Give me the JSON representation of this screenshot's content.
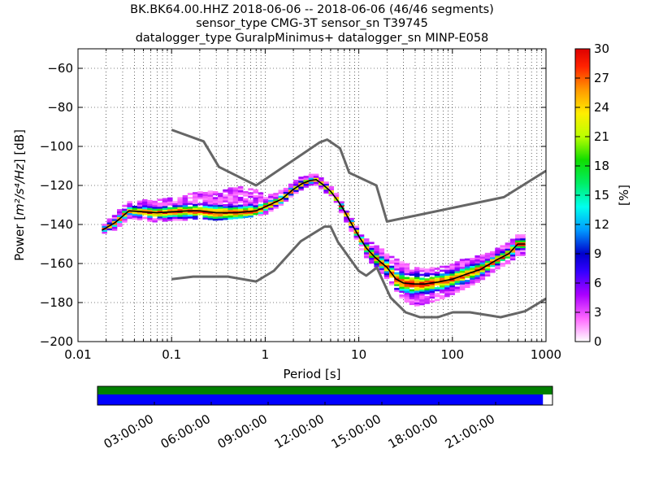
{
  "chart_data": {
    "type": "heatmap",
    "title_lines": [
      "BK.BK64.00.HHZ   2018-06-06 -- 2018-06-06  (46/46 segments)",
      "sensor_type CMG-3T sensor_sn T39745",
      "datalogger_type GuralpMinimus+ datalogger_sn MINP-E058"
    ],
    "xlabel": "Period [s]",
    "ylabel_prefix": "Power [",
    "ylabel_math": "m²/s⁴/Hz",
    "ylabel_suffix": "] [dB]",
    "xscale": "log",
    "xlim": [
      0.01,
      1000
    ],
    "ylim": [
      -200,
      -50
    ],
    "x_ticks": [
      0.01,
      0.1,
      1,
      10,
      100,
      1000
    ],
    "x_tick_labels": [
      "0.01",
      "0.1",
      "1",
      "10",
      "100",
      "1000"
    ],
    "y_ticks": [
      -200,
      -180,
      -160,
      -140,
      -120,
      -100,
      -80,
      -60
    ],
    "y_tick_labels": [
      "−200",
      "−180",
      "−160",
      "−140",
      "−120",
      "−100",
      "−80",
      "−60"
    ],
    "grid": true,
    "colorbar": {
      "label": "[%]",
      "min": 0,
      "max": 30,
      "ticks": [
        0,
        3,
        6,
        9,
        12,
        15,
        18,
        21,
        24,
        27,
        30
      ],
      "tick_labels": [
        "0",
        "3",
        "6",
        "9",
        "12",
        "15",
        "18",
        "21",
        "24",
        "27",
        "30"
      ]
    },
    "mean_psd": {
      "color": "#000000",
      "period": [
        0.018,
        0.025,
        0.035,
        0.05,
        0.07,
        0.1,
        0.15,
        0.2,
        0.3,
        0.5,
        0.8,
        1.0,
        1.5,
        2.0,
        2.5,
        3.0,
        3.5,
        4.0,
        5.0,
        6.0,
        7.0,
        8.0,
        10,
        12,
        15,
        20,
        25,
        30,
        40,
        50,
        70,
        100,
        150,
        200,
        300,
        400,
        500,
        600
      ],
      "power": [
        -143,
        -139,
        -133,
        -133.5,
        -134,
        -133.5,
        -133,
        -133,
        -134,
        -134,
        -133,
        -131,
        -127,
        -122,
        -119,
        -117.5,
        -117,
        -119,
        -123,
        -128,
        -133,
        -138,
        -146,
        -152,
        -157,
        -162,
        -168,
        -170,
        -170.5,
        -170.5,
        -169.5,
        -168,
        -165,
        -163,
        -158,
        -155,
        -150,
        -150
      ]
    },
    "noise_models": [
      {
        "id": "high-noise-model",
        "color": "#666666",
        "period": [
          0.1,
          0.22,
          0.32,
          0.8,
          3.8,
          4.6,
          6.3,
          7.9,
          15.4,
          20,
          354.8,
          1000
        ],
        "power": [
          -91.5,
          -97.4,
          -110.5,
          -120,
          -98,
          -96.5,
          -101,
          -113.5,
          -120,
          -138.5,
          -126,
          -112.5
        ]
      },
      {
        "id": "low-noise-model",
        "color": "#666666",
        "period": [
          0.1,
          0.17,
          0.4,
          0.8,
          1.24,
          2.4,
          4.3,
          5.0,
          6.0,
          10.0,
          12.0,
          15.6,
          21.9,
          31.6,
          45.0,
          70.0,
          101.0,
          154.0,
          328.0,
          600.0,
          1000.0
        ],
        "power": [
          -168,
          -166.7,
          -166.7,
          -169.2,
          -163.7,
          -148.6,
          -141.1,
          -141.1,
          -149,
          -163.8,
          -166.2,
          -162.1,
          -177.5,
          -185,
          -187.5,
          -187.5,
          -185,
          -185,
          -187.5,
          -184.4,
          -178
        ]
      }
    ],
    "spread": {
      "period": [
        0.018,
        0.025,
        0.035,
        0.05,
        0.07,
        0.1,
        0.15,
        0.2,
        0.3,
        0.5,
        0.8,
        1.0,
        1.5,
        2.0,
        2.5,
        3.0,
        3.5,
        4.0,
        5.0,
        6.0,
        7.0,
        8.0,
        10,
        12,
        15,
        20,
        25,
        30,
        40,
        50,
        70,
        100,
        150,
        200,
        300,
        400,
        500,
        600
      ],
      "upper": [
        -141,
        -135,
        -129,
        -128,
        -128,
        -126,
        -125,
        -124,
        -123,
        -123,
        -125,
        -126,
        -123,
        -119,
        -116,
        -115,
        -115,
        -117,
        -121,
        -126,
        -131,
        -136,
        -143,
        -148,
        -151,
        -155,
        -158,
        -160,
        -162,
        -163,
        -162,
        -161,
        -157,
        -156,
        -153,
        -150,
        -146,
        -146
      ],
      "lower": [
        -145,
        -143,
        -137,
        -138,
        -139,
        -138,
        -138,
        -137,
        -138,
        -137,
        -136,
        -135,
        -130,
        -125,
        -122,
        -120,
        -120,
        -122,
        -126,
        -131,
        -137,
        -142,
        -151,
        -157,
        -162,
        -168,
        -174,
        -179,
        -182,
        -181,
        -179,
        -176,
        -172,
        -169,
        -163,
        -160,
        -156,
        -156
      ]
    },
    "upper_excursion": {
      "period": [
        0.3,
        0.5,
        0.8,
        1.0,
        1.5
      ],
      "upper": [
        -124,
        -121,
        -123,
        -126,
        -124
      ]
    }
  },
  "timeline": {
    "labels": [
      "03:00:00",
      "06:00:00",
      "09:00:00",
      "12:00:00",
      "15:00:00",
      "18:00:00",
      "21:00:00"
    ],
    "available_color": "#008000",
    "used_color": "#0000ff",
    "used_fraction": 0.979
  }
}
